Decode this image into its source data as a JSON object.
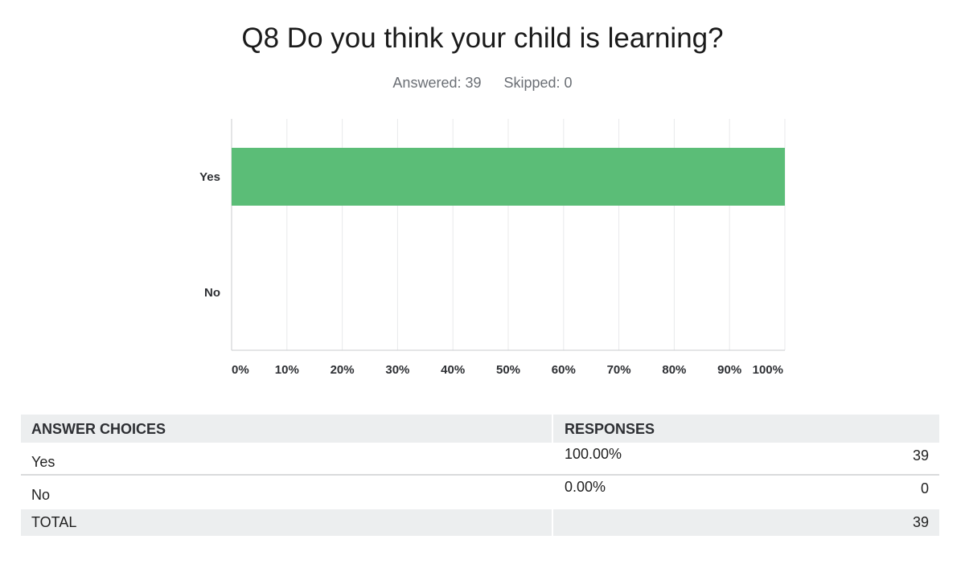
{
  "header": {
    "title": "Q8 Do you think your child is learning?",
    "answered": "Answered: 39",
    "skipped": "Skipped: 0"
  },
  "chart_data": {
    "type": "bar",
    "orientation": "horizontal",
    "categories": [
      "Yes",
      "No"
    ],
    "values": [
      100,
      0
    ],
    "xlim": [
      0,
      100
    ],
    "xticks": [
      "0%",
      "10%",
      "20%",
      "30%",
      "40%",
      "50%",
      "60%",
      "70%",
      "80%",
      "90%",
      "100%"
    ],
    "grid": true,
    "bar_color": "#5bbd77",
    "title": "Q8 Do you think your child is learning?"
  },
  "table": {
    "headers": {
      "choices": "ANSWER CHOICES",
      "responses": "RESPONSES"
    },
    "rows": [
      {
        "choice": "Yes",
        "percent": "100.00%",
        "count": "39"
      },
      {
        "choice": "No",
        "percent": "0.00%",
        "count": "0"
      }
    ],
    "total": {
      "label": "TOTAL",
      "count": "39"
    }
  }
}
